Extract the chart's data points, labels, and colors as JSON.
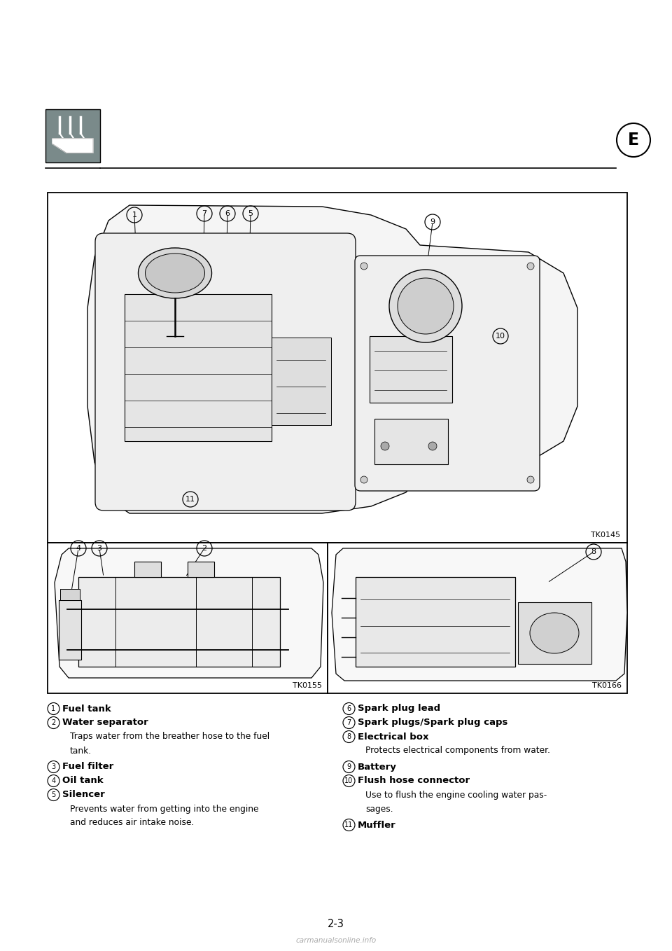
{
  "bg_color": "#ffffff",
  "page_number": "2-3",
  "section_letter": "E",
  "items_left": [
    {
      "num": "1",
      "bold": "Fuel tank",
      "desc": ""
    },
    {
      "num": "2",
      "bold": "Water separator",
      "desc": "Traps water from the breather hose to the fuel\ntank."
    },
    {
      "num": "3",
      "bold": "Fuel filter",
      "desc": ""
    },
    {
      "num": "4",
      "bold": "Oil tank",
      "desc": ""
    },
    {
      "num": "5",
      "bold": "Silencer",
      "desc": "Prevents water from getting into the engine\nand reduces air intake noise."
    }
  ],
  "items_right": [
    {
      "num": "6",
      "bold": "Spark plug lead",
      "desc": ""
    },
    {
      "num": "7",
      "bold": "Spark plugs/Spark plug caps",
      "desc": ""
    },
    {
      "num": "8",
      "bold": "Electrical box",
      "desc": "Protects electrical components from water."
    },
    {
      "num": "9",
      "bold": "Battery",
      "desc": ""
    },
    {
      "num": "10",
      "bold": "Flush hose connector",
      "desc": "Use to flush the engine cooling water pas-\nsages."
    },
    {
      "num": "11",
      "bold": "Muffler",
      "desc": ""
    }
  ],
  "image_codes": [
    "TK0145",
    "TK0155",
    "TK0166"
  ],
  "text_color": "#000000",
  "border_color": "#000000",
  "icon_bg": "#7a8a8a",
  "watermark": "carmanualsonline.info"
}
